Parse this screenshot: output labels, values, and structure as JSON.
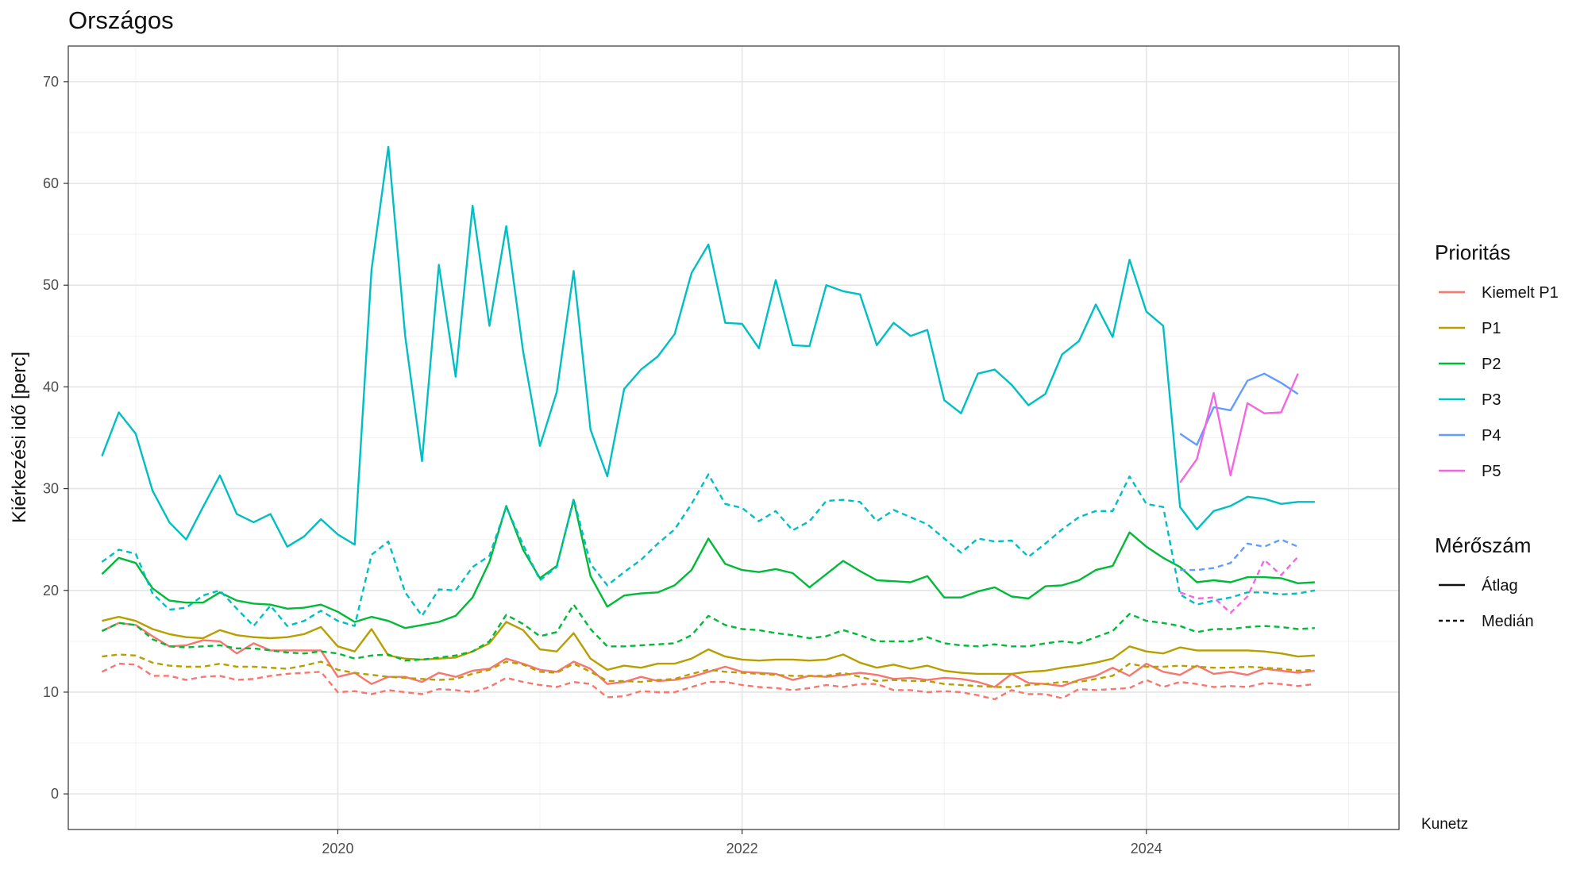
{
  "caption": "Kunetz",
  "chart_data": {
    "type": "line",
    "title": "Országos",
    "xlabel": "",
    "ylabel": "Kiérkezési idő [perc]",
    "ylim": [
      -3.5,
      73.5
    ],
    "xlim": [
      "2018-09-01",
      "2025-04-01"
    ],
    "y_ticks": [
      0,
      10,
      20,
      30,
      40,
      50,
      60,
      70
    ],
    "x_ticks": [
      "2020",
      "2022",
      "2024"
    ],
    "x_tick_dates": [
      "2020-01-01",
      "2022-01-01",
      "2024-01-01"
    ],
    "grid": true,
    "legend_position": "right",
    "legend": {
      "color_title": "Prioritás",
      "linetype_title": "Mérőszám",
      "linetypes": [
        {
          "name": "Átlag",
          "dash": "solid"
        },
        {
          "name": "Medián",
          "dash": "dashed"
        }
      ]
    },
    "series": [
      {
        "name": "Kiemelt P1",
        "color": "#F8766D",
        "metric": "Átlag",
        "start": "2018-11",
        "values": [
          16.0,
          16.8,
          16.6,
          15.5,
          14.5,
          14.6,
          15.1,
          15.0,
          13.8,
          14.8,
          14.1,
          14.1,
          14.1,
          14.1,
          11.5,
          11.9,
          10.8,
          11.5,
          11.5,
          11.0,
          11.9,
          11.5,
          12.1,
          12.3,
          13.3,
          12.8,
          12.2,
          12.0,
          13.0,
          12.3,
          10.8,
          11.0,
          11.5,
          11.1,
          11.2,
          11.5,
          12.0,
          12.5,
          12.0,
          11.9,
          11.8,
          11.2,
          11.6,
          11.5,
          11.7,
          11.9,
          11.7,
          11.3,
          11.4,
          11.2,
          11.4,
          11.3,
          11.0,
          10.5,
          11.8,
          10.9,
          10.8,
          10.6,
          11.2,
          11.6,
          12.4,
          11.6,
          12.8,
          12.0,
          11.7,
          12.6,
          11.8,
          12.0,
          11.7,
          12.3,
          12.1,
          11.9,
          12.1
        ]
      },
      {
        "name": "Kiemelt P1",
        "color": "#F8766D",
        "metric": "Medián",
        "start": "2018-11",
        "values": [
          12.0,
          12.8,
          12.7,
          11.6,
          11.6,
          11.2,
          11.5,
          11.6,
          11.2,
          11.3,
          11.6,
          11.8,
          11.9,
          12.0,
          10.0,
          10.1,
          9.8,
          10.2,
          10.0,
          9.8,
          10.3,
          10.2,
          10.0,
          10.5,
          11.4,
          11.0,
          10.7,
          10.5,
          11.0,
          10.8,
          9.5,
          9.6,
          10.1,
          10.0,
          10.0,
          10.5,
          11.0,
          11.0,
          10.7,
          10.5,
          10.4,
          10.2,
          10.4,
          10.7,
          10.5,
          10.8,
          10.8,
          10.2,
          10.2,
          10.0,
          10.1,
          10.0,
          9.7,
          9.3,
          10.2,
          9.8,
          9.8,
          9.4,
          10.3,
          10.2,
          10.3,
          10.4,
          11.2,
          10.5,
          11.0,
          10.8,
          10.5,
          10.6,
          10.5,
          10.9,
          10.8,
          10.6,
          10.8
        ]
      },
      {
        "name": "P1",
        "color": "#B79F00",
        "metric": "Átlag",
        "start": "2018-11",
        "values": [
          17.0,
          17.4,
          17.0,
          16.2,
          15.7,
          15.4,
          15.3,
          16.1,
          15.6,
          15.4,
          15.3,
          15.4,
          15.7,
          16.4,
          14.5,
          14.0,
          16.2,
          13.6,
          13.3,
          13.2,
          13.3,
          13.4,
          14.0,
          14.8,
          16.9,
          16.1,
          14.2,
          14.0,
          15.8,
          13.3,
          12.2,
          12.6,
          12.4,
          12.8,
          12.8,
          13.3,
          14.2,
          13.5,
          13.2,
          13.1,
          13.2,
          13.2,
          13.1,
          13.2,
          13.7,
          12.9,
          12.4,
          12.7,
          12.3,
          12.6,
          12.1,
          11.9,
          11.8,
          11.8,
          11.8,
          12.0,
          12.1,
          12.4,
          12.6,
          12.9,
          13.3,
          14.5,
          14.0,
          13.8,
          14.4,
          14.1,
          14.1,
          14.1,
          14.1,
          14.0,
          13.8,
          13.5,
          13.6
        ]
      },
      {
        "name": "P1",
        "color": "#B79F00",
        "metric": "Medián",
        "start": "2018-11",
        "values": [
          13.5,
          13.7,
          13.6,
          12.9,
          12.6,
          12.5,
          12.5,
          12.8,
          12.5,
          12.5,
          12.4,
          12.3,
          12.6,
          13.0,
          12.2,
          11.9,
          11.7,
          11.5,
          11.4,
          11.3,
          11.2,
          11.3,
          11.8,
          12.2,
          13.0,
          12.7,
          12.0,
          11.9,
          12.8,
          12.0,
          11.1,
          11.1,
          11.0,
          11.2,
          11.3,
          11.8,
          12.2,
          12.0,
          11.9,
          11.8,
          11.7,
          11.6,
          11.6,
          11.6,
          11.9,
          11.5,
          11.1,
          11.2,
          11.1,
          11.1,
          10.8,
          10.7,
          10.6,
          10.5,
          10.5,
          10.7,
          10.8,
          11.0,
          11.0,
          11.3,
          11.6,
          12.8,
          12.5,
          12.5,
          12.6,
          12.5,
          12.4,
          12.4,
          12.5,
          12.4,
          12.3,
          12.1,
          12.2
        ]
      },
      {
        "name": "P2",
        "color": "#00BA38",
        "metric": "Átlag",
        "start": "2018-11",
        "values": [
          21.6,
          23.2,
          22.7,
          20.2,
          19.0,
          18.8,
          18.8,
          19.8,
          19.0,
          18.7,
          18.6,
          18.2,
          18.3,
          18.6,
          17.9,
          16.9,
          17.4,
          17.0,
          16.3,
          16.6,
          16.9,
          17.5,
          19.3,
          22.8,
          28.3,
          24.0,
          21.2,
          22.4,
          28.9,
          21.4,
          18.4,
          19.5,
          19.7,
          19.8,
          20.5,
          22.0,
          25.1,
          22.6,
          22.0,
          21.8,
          22.1,
          21.7,
          20.3,
          21.6,
          22.9,
          21.9,
          21.0,
          20.9,
          20.8,
          21.4,
          19.3,
          19.3,
          19.9,
          20.3,
          19.4,
          19.2,
          20.4,
          20.5,
          21.0,
          22.0,
          22.4,
          25.7,
          24.3,
          23.2,
          22.3,
          20.8,
          21.0,
          20.8,
          21.3,
          21.3,
          21.2,
          20.7,
          20.8
        ]
      },
      {
        "name": "P2",
        "color": "#00BA38",
        "metric": "Medián",
        "start": "2018-11",
        "values": [
          16.0,
          16.8,
          16.6,
          15.2,
          14.5,
          14.4,
          14.5,
          14.6,
          14.3,
          14.3,
          14.1,
          13.9,
          13.8,
          14.0,
          13.8,
          13.3,
          13.6,
          13.7,
          13.1,
          13.2,
          13.4,
          13.6,
          14.0,
          15.0,
          17.6,
          16.7,
          15.5,
          15.9,
          18.6,
          16.2,
          14.5,
          14.5,
          14.6,
          14.7,
          14.8,
          15.6,
          17.5,
          16.6,
          16.2,
          16.1,
          15.8,
          15.6,
          15.3,
          15.5,
          16.1,
          15.6,
          15.0,
          15.0,
          15.0,
          15.4,
          14.8,
          14.6,
          14.5,
          14.7,
          14.5,
          14.5,
          14.8,
          15.0,
          14.8,
          15.4,
          16.0,
          17.7,
          17.0,
          16.8,
          16.5,
          15.9,
          16.2,
          16.2,
          16.4,
          16.5,
          16.4,
          16.2,
          16.3
        ]
      },
      {
        "name": "P3",
        "color": "#00BFC4",
        "metric": "Átlag",
        "start": "2018-11",
        "values": [
          33.2,
          37.5,
          35.4,
          29.8,
          26.7,
          25.0,
          28.2,
          31.3,
          27.5,
          26.7,
          27.5,
          24.3,
          25.3,
          27.0,
          25.5,
          24.5,
          51.5,
          63.6,
          45.0,
          32.7,
          52.0,
          41.0,
          57.8,
          46.0,
          55.8,
          43.5,
          34.2,
          39.5,
          51.4,
          35.8,
          31.2,
          39.8,
          41.7,
          43.0,
          45.2,
          51.2,
          54.0,
          46.3,
          46.2,
          43.8,
          50.5,
          44.1,
          44.0,
          50.0,
          49.4,
          49.1,
          44.1,
          46.3,
          45.0,
          45.6,
          38.7,
          37.4,
          41.3,
          41.7,
          40.2,
          38.2,
          39.3,
          43.2,
          44.5,
          48.1,
          44.9,
          52.5,
          47.4,
          46.0,
          28.2,
          26.0,
          27.8,
          28.3,
          29.2,
          29.0,
          28.5,
          28.7,
          28.7
        ]
      },
      {
        "name": "P3",
        "color": "#00BFC4",
        "metric": "Medián",
        "start": "2018-11",
        "values": [
          22.8,
          24.0,
          23.6,
          19.7,
          18.1,
          18.3,
          19.5,
          20.0,
          18.2,
          16.5,
          18.5,
          16.5,
          17.0,
          18.0,
          17.0,
          16.5,
          23.5,
          24.8,
          19.8,
          17.5,
          20.1,
          20.0,
          22.3,
          23.4,
          28.2,
          24.5,
          21.0,
          22.3,
          29.0,
          22.6,
          20.5,
          21.8,
          23.0,
          24.6,
          26.0,
          28.5,
          31.4,
          28.5,
          28.1,
          26.8,
          27.8,
          25.9,
          26.8,
          28.8,
          28.9,
          28.7,
          26.8,
          27.9,
          27.2,
          26.5,
          25.1,
          23.7,
          25.1,
          24.8,
          24.9,
          23.3,
          24.6,
          26.0,
          27.2,
          27.8,
          27.8,
          31.2,
          28.5,
          28.2,
          19.6,
          18.6,
          19.0,
          19.3,
          19.8,
          19.8,
          19.6,
          19.7,
          20.0
        ]
      },
      {
        "name": "P4",
        "color": "#619CFF",
        "metric": "Átlag",
        "start": "2024-03",
        "values": [
          35.4,
          34.3,
          38.0,
          37.7,
          40.6,
          41.3,
          40.4,
          39.3
        ]
      },
      {
        "name": "P4",
        "color": "#619CFF",
        "metric": "Medián",
        "start": "2024-03",
        "values": [
          22.0,
          22.0,
          22.2,
          22.7,
          24.6,
          24.3,
          25.0,
          24.3
        ]
      },
      {
        "name": "P5",
        "color": "#F564E3",
        "metric": "Átlag",
        "start": "2024-03",
        "values": [
          30.6,
          32.9,
          39.4,
          31.3,
          38.4,
          37.4,
          37.5,
          41.3
        ]
      },
      {
        "name": "P5",
        "color": "#F564E3",
        "metric": "Medián",
        "start": "2024-03",
        "values": [
          19.8,
          19.2,
          19.3,
          17.8,
          19.4,
          23.0,
          21.5,
          23.3
        ]
      }
    ],
    "legend_entries": [
      {
        "name": "Kiemelt P1",
        "color": "#F8766D"
      },
      {
        "name": "P1",
        "color": "#B79F00"
      },
      {
        "name": "P2",
        "color": "#00BA38"
      },
      {
        "name": "P3",
        "color": "#00BFC4"
      },
      {
        "name": "P4",
        "color": "#619CFF"
      },
      {
        "name": "P5",
        "color": "#F564E3"
      }
    ]
  }
}
